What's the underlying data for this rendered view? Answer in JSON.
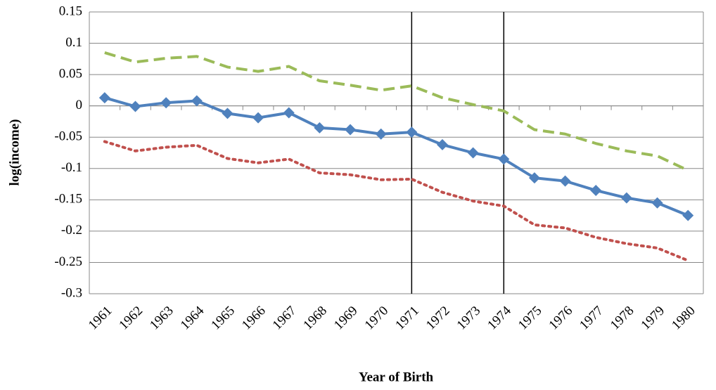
{
  "chart_data": {
    "type": "line",
    "x_label": "Year of Birth",
    "y_label": "log(income)",
    "categories": [
      "1961",
      "1962",
      "1963",
      "1964",
      "1965",
      "1966",
      "1967",
      "1968",
      "1969",
      "1970",
      "1971",
      "1972",
      "1973",
      "1974",
      "1975",
      "1976",
      "1977",
      "1978",
      "1979",
      "1980"
    ],
    "series": [
      {
        "color": "#9bbb59",
        "dash": "dashed",
        "values": [
          0.085,
          0.07,
          0.076,
          0.079,
          0.062,
          0.055,
          0.063,
          0.04,
          0.033,
          0.025,
          0.032,
          0.013,
          0.002,
          -0.008,
          -0.038,
          -0.045,
          -0.06,
          -0.072,
          -0.08,
          -0.103
        ]
      },
      {
        "color": "#4f81bd",
        "dash": "solid",
        "marker": "diamond",
        "values": [
          0.013,
          -0.001,
          0.005,
          0.008,
          -0.012,
          -0.019,
          -0.011,
          -0.035,
          -0.038,
          -0.045,
          -0.042,
          -0.062,
          -0.075,
          -0.085,
          -0.115,
          -0.12,
          -0.135,
          -0.147,
          -0.155,
          -0.175
        ]
      },
      {
        "color": "#c0504d",
        "dash": "dotted",
        "values": [
          -0.057,
          -0.072,
          -0.066,
          -0.063,
          -0.084,
          -0.091,
          -0.085,
          -0.107,
          -0.11,
          -0.118,
          -0.117,
          -0.138,
          -0.152,
          -0.16,
          -0.19,
          -0.195,
          -0.21,
          -0.22,
          -0.227,
          -0.247
        ]
      }
    ],
    "vertical_lines": [
      "1971",
      "1974"
    ],
    "ylim": [
      -0.3,
      0.15
    ],
    "yticks": [
      0.15,
      0.1,
      0.05,
      0,
      -0.05,
      -0.1,
      -0.15,
      -0.2,
      -0.25,
      -0.3
    ],
    "grid": true
  }
}
